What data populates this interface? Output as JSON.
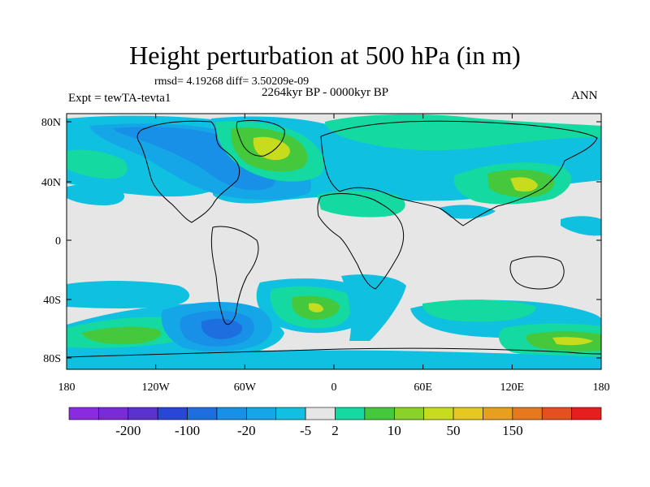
{
  "title": "Height perturbation at 500 hPa (in m)",
  "stats": "rmsd= 4.19268 diff= 3.50209e-09",
  "period": "2264kyr BP - 0000kyr BP",
  "experiment": "Expt = tewTA-tevta1",
  "season": "ANN",
  "lat_ticks": [
    "80N",
    "40N",
    "0",
    "40S",
    "80S"
  ],
  "lon_ticks": [
    "180",
    "120W",
    "60W",
    "0",
    "60E",
    "120E",
    "180"
  ],
  "colorbar": {
    "labels": [
      "-200",
      "-100",
      "-20",
      "-5",
      "2",
      "10",
      "50",
      "150"
    ],
    "colors": [
      "#8a2be2",
      "#7a2ad6",
      "#5a32d0",
      "#2846d8",
      "#1d6fe0",
      "#1890e8",
      "#14a6e6",
      "#10c0e0",
      "#e6e6e6",
      "#14d9a0",
      "#46c83c",
      "#8ad228",
      "#c8dc1e",
      "#e6c81e",
      "#e6a01e",
      "#e6781e",
      "#e6501e",
      "#e61e1e"
    ],
    "label_after_index": [
      1,
      3,
      5,
      7,
      8,
      10,
      12,
      14
    ]
  },
  "palette": {
    "background": "#e6e6e6",
    "deep_blue": "#1d6fe0",
    "mid_blue": "#1890e8",
    "light_blue": "#14a6e6",
    "cyan": "#10c0e0",
    "teal": "#14d9a0",
    "green": "#46c83c",
    "yellow_green": "#8ad228",
    "yellow": "#c8dc1e",
    "coast": "#000000"
  }
}
